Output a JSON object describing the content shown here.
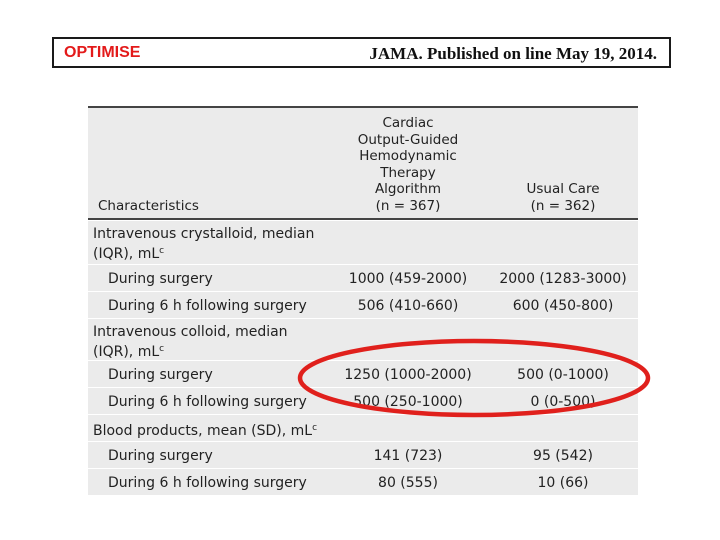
{
  "header": {
    "title": "OPTIMISE",
    "citation": "JAMA. Published on line May 19, 2014."
  },
  "table": {
    "columns": {
      "characteristics": "Characteristics",
      "group1_lines": [
        "Cardiac",
        "Output-Guided",
        "Hemodynamic",
        "Therapy",
        "Algorithm",
        "(n = 367)"
      ],
      "group2_lines": [
        "Usual Care",
        "(n = 362)"
      ]
    },
    "groups": [
      {
        "label_line1": "Intravenous crystalloid, median",
        "label_line2": "(IQR), mL",
        "sup": "c",
        "rows": [
          {
            "label": "During surgery",
            "v1": "1000 (459-2000)",
            "v2": "2000 (1283-3000)"
          },
          {
            "label": "During 6 h following surgery",
            "v1": "506 (410-660)",
            "v2": "600 (450-800)"
          }
        ]
      },
      {
        "label_line1": "Intravenous colloid, median",
        "label_line2": "(IQR), mL",
        "sup": "c",
        "rows": [
          {
            "label": "During surgery",
            "v1": "1250 (1000-2000)",
            "v2": "500 (0-1000)"
          },
          {
            "label": "During 6 h following surgery",
            "v1": "500 (250-1000)",
            "v2": "0 (0-500)"
          }
        ]
      },
      {
        "label_line1": "Blood products, mean (SD), mL",
        "label_line2": "",
        "sup": "c",
        "rows": [
          {
            "label": "During surgery",
            "v1": "141 (723)",
            "v2": "95 (542)"
          },
          {
            "label": "During 6 h following surgery",
            "v1": "80 (555)",
            "v2": "10 (66)"
          }
        ]
      }
    ]
  },
  "annotation": {
    "color": "#e0201c"
  }
}
